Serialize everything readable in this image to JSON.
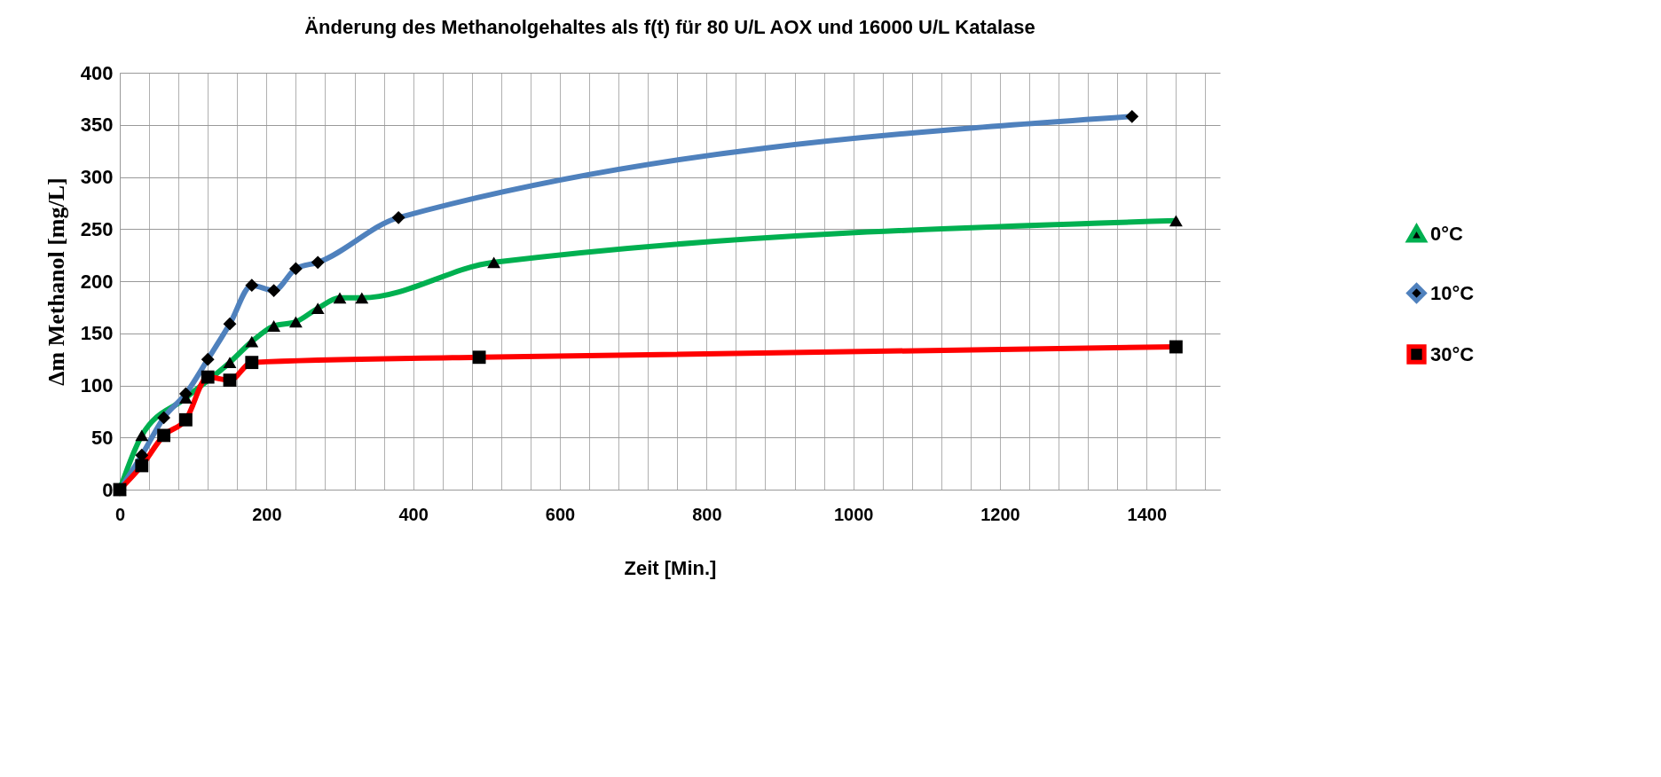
{
  "chart_data": {
    "type": "line",
    "title": "Änderung des Methanolgehaltes als f(t) für 80 U/L AOX und 16000 U/L Katalase",
    "xlabel": "Zeit [Min.]",
    "ylabel": "Δm Methanol [mg/L]",
    "xlim": [
      0,
      1500
    ],
    "ylim": [
      0,
      400
    ],
    "xticks": [
      0,
      {
        "value": 40,
        "label": null
      },
      {
        "value": 80,
        "label": null
      },
      {
        "value": 120,
        "label": null
      },
      {
        "value": 160,
        "label": null
      },
      200,
      {
        "value": 240,
        "label": null
      },
      {
        "value": 280,
        "label": null
      },
      {
        "value": 320,
        "label": null
      },
      {
        "value": 360,
        "label": null
      },
      400,
      {
        "value": 440,
        "label": null
      },
      {
        "value": 480,
        "label": null
      },
      {
        "value": 520,
        "label": null
      },
      {
        "value": 560,
        "label": null
      },
      600,
      {
        "value": 640,
        "label": null
      },
      {
        "value": 680,
        "label": null
      },
      {
        "value": 720,
        "label": null
      },
      {
        "value": 760,
        "label": null
      },
      800,
      {
        "value": 840,
        "label": null
      },
      {
        "value": 880,
        "label": null
      },
      {
        "value": 920,
        "label": null
      },
      {
        "value": 960,
        "label": null
      },
      1000,
      {
        "value": 1040,
        "label": null
      },
      {
        "value": 1080,
        "label": null
      },
      {
        "value": 1120,
        "label": null
      },
      {
        "value": 1160,
        "label": null
      },
      1200,
      {
        "value": 1240,
        "label": null
      },
      {
        "value": 1280,
        "label": null
      },
      {
        "value": 1320,
        "label": null
      },
      {
        "value": 1360,
        "label": null
      },
      1400,
      {
        "value": 1440,
        "label": null
      },
      {
        "value": 1480,
        "label": null
      }
    ],
    "yticks": [
      0,
      50,
      100,
      150,
      200,
      250,
      300,
      350,
      400
    ],
    "grid": true,
    "legend": "right",
    "line_style": "solid",
    "series": [
      {
        "name": "0°C",
        "color": "#00b050",
        "marker": "triangle",
        "x": [
          0,
          30,
          90,
          150,
          180,
          210,
          240,
          270,
          300,
          330,
          510,
          1440
        ],
        "values": [
          0,
          52,
          88,
          122,
          142,
          157,
          161,
          174,
          184,
          184,
          218,
          258
        ]
      },
      {
        "name": "10°C",
        "color": "#4f81bd",
        "marker": "diamond",
        "x": [
          0,
          30,
          60,
          90,
          120,
          150,
          180,
          210,
          240,
          270,
          380,
          1380
        ],
        "values": [
          0,
          33,
          69,
          92,
          125,
          159,
          196,
          191,
          212,
          218,
          261,
          358
        ]
      },
      {
        "name": "30°C",
        "color": "#ff0000",
        "marker": "square",
        "x": [
          0,
          30,
          60,
          90,
          120,
          150,
          180,
          490,
          1440
        ],
        "values": [
          0,
          23,
          52,
          67,
          108,
          105,
          122,
          127,
          137
        ]
      }
    ]
  }
}
